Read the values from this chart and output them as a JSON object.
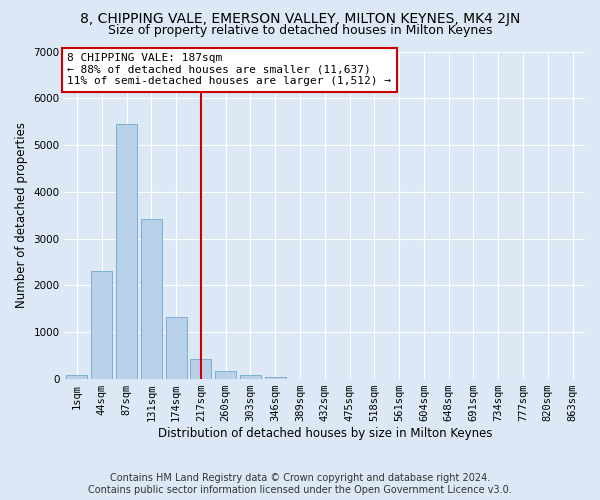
{
  "title": "8, CHIPPING VALE, EMERSON VALLEY, MILTON KEYNES, MK4 2JN",
  "subtitle": "Size of property relative to detached houses in Milton Keynes",
  "xlabel": "Distribution of detached houses by size in Milton Keynes",
  "ylabel": "Number of detached properties",
  "footer_line1": "Contains HM Land Registry data © Crown copyright and database right 2024.",
  "footer_line2": "Contains public sector information licensed under the Open Government Licence v3.0.",
  "bar_labels": [
    "1sqm",
    "44sqm",
    "87sqm",
    "131sqm",
    "174sqm",
    "217sqm",
    "260sqm",
    "303sqm",
    "346sqm",
    "389sqm",
    "432sqm",
    "475sqm",
    "518sqm",
    "561sqm",
    "604sqm",
    "648sqm",
    "691sqm",
    "734sqm",
    "777sqm",
    "820sqm",
    "863sqm"
  ],
  "bar_values": [
    80,
    2300,
    5450,
    3420,
    1320,
    430,
    165,
    80,
    55,
    0,
    0,
    0,
    0,
    0,
    0,
    0,
    0,
    0,
    0,
    0,
    0
  ],
  "bar_color": "#b8d0e8",
  "bar_edge_color": "#6ea8d0",
  "vline_x": 5.0,
  "vline_color": "#cc0000",
  "property_label": "8 CHIPPING VALE: 187sqm",
  "annotation_line1": "← 88% of detached houses are smaller (11,637)",
  "annotation_line2": "11% of semi-detached houses are larger (1,512) →",
  "annotation_box_color": "#ffffff",
  "annotation_box_edge": "#cc0000",
  "ylim": [
    0,
    7000
  ],
  "yticks": [
    0,
    1000,
    2000,
    3000,
    4000,
    5000,
    6000,
    7000
  ],
  "bg_color": "#dce8f5",
  "grid_color": "#ffffff",
  "title_fontsize": 10,
  "subtitle_fontsize": 9,
  "axis_label_fontsize": 8.5,
  "tick_fontsize": 7.5,
  "annotation_fontsize": 8,
  "footer_fontsize": 7
}
